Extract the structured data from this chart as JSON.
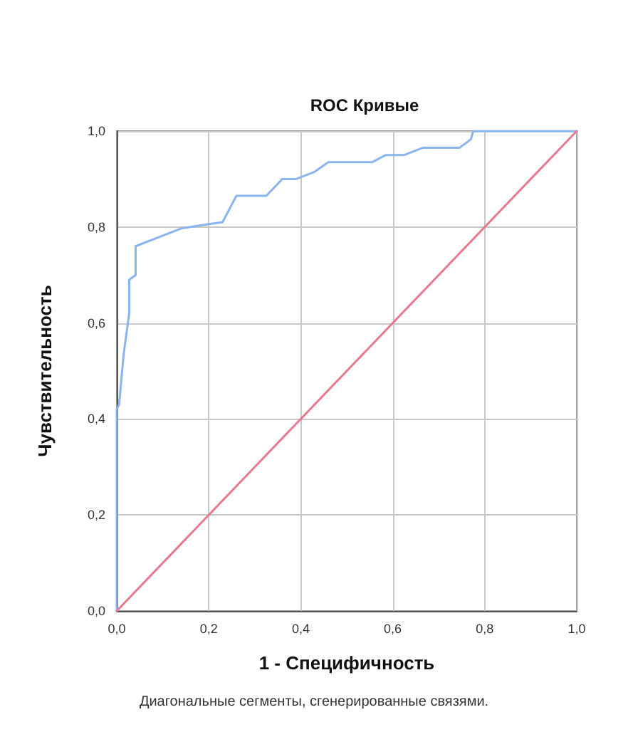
{
  "chart_data": {
    "type": "line",
    "title": "ROC Кривые",
    "xlabel": "1 - Специфичность",
    "ylabel": "Чувствительность",
    "annotations": [
      "Диагональные сегменты, сгенерированные связями."
    ],
    "series": [
      {
        "color": "#8ab4ee",
        "x": [
          0,
          0,
          0.005,
          0.015,
          0.027,
          0.027,
          0.041,
          0.041,
          0.14,
          0.2,
          0.23,
          0.26,
          0.325,
          0.36,
          0.39,
          0.43,
          0.46,
          0.555,
          0.585,
          0.625,
          0.665,
          0.745,
          0.77,
          0.775,
          1
        ],
        "values": [
          0,
          0.42,
          0.43,
          0.535,
          0.62,
          0.69,
          0.7,
          0.76,
          0.797,
          0.806,
          0.81,
          0.865,
          0.865,
          0.9,
          0.9,
          0.915,
          0.935,
          0.935,
          0.95,
          0.95,
          0.965,
          0.965,
          0.983,
          1,
          1
        ]
      },
      {
        "color": "#e8788e",
        "x": [
          0,
          1
        ],
        "values": [
          0,
          1
        ]
      }
    ],
    "xlim": [
      0,
      1
    ],
    "ylim": [
      0,
      1
    ],
    "xticks": [
      {
        "value": 0,
        "label": "0,0"
      },
      {
        "value": 0.2,
        "label": "0,2"
      },
      {
        "value": 0.4,
        "label": "0,4"
      },
      {
        "value": 0.6,
        "label": "0,6"
      },
      {
        "value": 0.8,
        "label": "0,8"
      },
      {
        "value": 1,
        "label": "1,0"
      }
    ],
    "yticks": [
      {
        "value": 0,
        "label": "0,0"
      },
      {
        "value": 0.2,
        "label": "0,2"
      },
      {
        "value": 0.4,
        "label": "0,4"
      },
      {
        "value": 0.6,
        "label": "0,6"
      },
      {
        "value": 0.8,
        "label": "0,8"
      },
      {
        "value": 1,
        "label": "1,0"
      }
    ],
    "grid": true,
    "marker": "none",
    "line_style": "solid"
  }
}
